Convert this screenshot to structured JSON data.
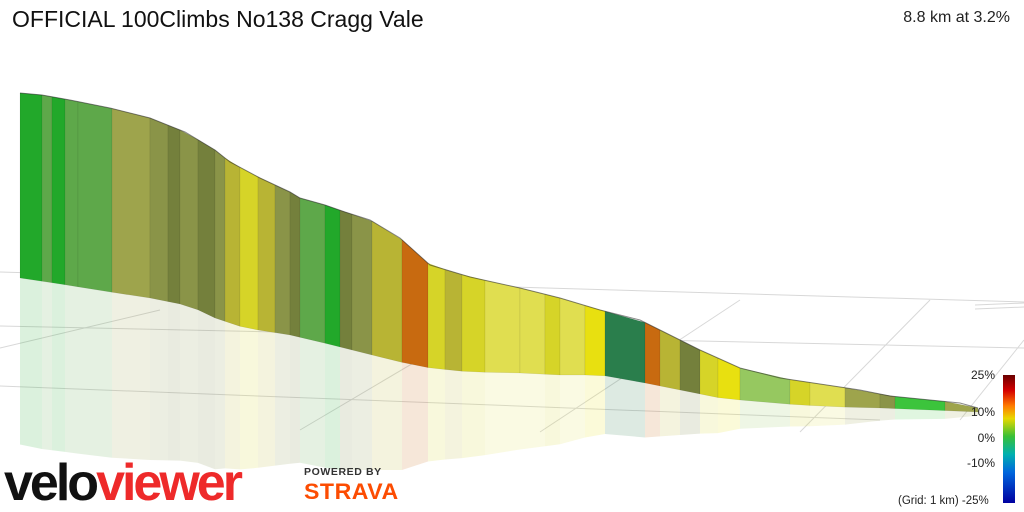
{
  "segment": {
    "title": "OFFICIAL 100Climbs No138 Cragg Vale",
    "summary": "8.8 km at 3.2%"
  },
  "branding": {
    "logo_text": "veloviewer",
    "powered_by": "POWERED BY",
    "strava": "STRAVA"
  },
  "legend": {
    "label_25": "25%",
    "label_10": "10%",
    "label_0": "0%",
    "label_m10": "-10%",
    "label_m25": "-25%",
    "grid_note": "(Grid: 1 km)"
  },
  "profile": {
    "colors": {
      "dark_green": "#22a82a",
      "green": "#5ea84a",
      "olive": "#8a9448",
      "dark_olive": "#74803c",
      "khaki": "#9ea44c",
      "olive_yellow": "#b8b434",
      "yellow": "#d6d428",
      "pale_yellow": "#e0de50",
      "bright_yellow": "#e8e010",
      "orange": "#c86a10",
      "teal": "#2a7e4c",
      "light_green": "#96c860",
      "lime": "#3cc43c",
      "brand_orange": "#fc4c02",
      "logo_dark": "#111111",
      "logo_red": "#ee2a2a"
    }
  }
}
